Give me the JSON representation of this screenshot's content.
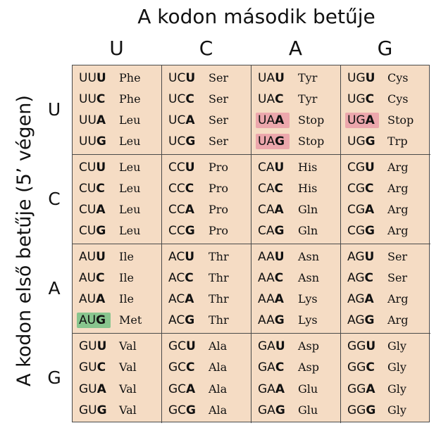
{
  "title": "A kodon második betűje",
  "side_title": "A kodon első betűje (5’ végen)",
  "column_headers": [
    "U",
    "C",
    "A",
    "G"
  ],
  "row_headers": [
    "U",
    "C",
    "A",
    "G"
  ],
  "colors": {
    "cell_background": "#f5dcc4",
    "stop_highlight": "#eca7ac",
    "start_highlight": "#88c58e"
  },
  "blocks": [
    [
      [
        [
          "UU",
          "U",
          "Phe",
          ""
        ],
        [
          "UU",
          "C",
          "Phe",
          ""
        ],
        [
          "UU",
          "A",
          "Leu",
          ""
        ],
        [
          "UU",
          "G",
          "Leu",
          ""
        ]
      ],
      [
        [
          "UC",
          "U",
          "Ser",
          ""
        ],
        [
          "UC",
          "C",
          "Ser",
          ""
        ],
        [
          "UC",
          "A",
          "Ser",
          ""
        ],
        [
          "UC",
          "G",
          "Ser",
          ""
        ]
      ],
      [
        [
          "UA",
          "U",
          "Tyr",
          ""
        ],
        [
          "UA",
          "C",
          "Tyr",
          ""
        ],
        [
          "UA",
          "A",
          "Stop",
          "stop"
        ],
        [
          "UA",
          "G",
          "Stop",
          "stop"
        ]
      ],
      [
        [
          "UG",
          "U",
          "Cys",
          ""
        ],
        [
          "UG",
          "C",
          "Cys",
          ""
        ],
        [
          "UG",
          "A",
          "Stop",
          "stop"
        ],
        [
          "UG",
          "G",
          "Trp",
          ""
        ]
      ]
    ],
    [
      [
        [
          "CU",
          "U",
          "Leu",
          ""
        ],
        [
          "CU",
          "C",
          "Leu",
          ""
        ],
        [
          "CU",
          "A",
          "Leu",
          ""
        ],
        [
          "CU",
          "G",
          "Leu",
          ""
        ]
      ],
      [
        [
          "CC",
          "U",
          "Pro",
          ""
        ],
        [
          "CC",
          "C",
          "Pro",
          ""
        ],
        [
          "CC",
          "A",
          "Pro",
          ""
        ],
        [
          "CC",
          "G",
          "Pro",
          ""
        ]
      ],
      [
        [
          "CA",
          "U",
          "His",
          ""
        ],
        [
          "CA",
          "C",
          "His",
          ""
        ],
        [
          "CA",
          "A",
          "Gln",
          ""
        ],
        [
          "CA",
          "G",
          "Gln",
          ""
        ]
      ],
      [
        [
          "CG",
          "U",
          "Arg",
          ""
        ],
        [
          "CG",
          "C",
          "Arg",
          ""
        ],
        [
          "CG",
          "A",
          "Arg",
          ""
        ],
        [
          "CG",
          "G",
          "Arg",
          ""
        ]
      ]
    ],
    [
      [
        [
          "AU",
          "U",
          "Ile",
          ""
        ],
        [
          "AU",
          "C",
          "Ile",
          ""
        ],
        [
          "AU",
          "A",
          "Ile",
          ""
        ],
        [
          "AU",
          "G",
          "Met",
          "start"
        ]
      ],
      [
        [
          "AC",
          "U",
          "Thr",
          ""
        ],
        [
          "AC",
          "C",
          "Thr",
          ""
        ],
        [
          "AC",
          "A",
          "Thr",
          ""
        ],
        [
          "AC",
          "G",
          "Thr",
          ""
        ]
      ],
      [
        [
          "AA",
          "U",
          "Asn",
          ""
        ],
        [
          "AA",
          "C",
          "Asn",
          ""
        ],
        [
          "AA",
          "A",
          "Lys",
          ""
        ],
        [
          "AA",
          "G",
          "Lys",
          ""
        ]
      ],
      [
        [
          "AG",
          "U",
          "Ser",
          ""
        ],
        [
          "AG",
          "C",
          "Ser",
          ""
        ],
        [
          "AG",
          "A",
          "Arg",
          ""
        ],
        [
          "AG",
          "G",
          "Arg",
          ""
        ]
      ]
    ],
    [
      [
        [
          "GU",
          "U",
          "Val",
          ""
        ],
        [
          "GU",
          "C",
          "Val",
          ""
        ],
        [
          "GU",
          "A",
          "Val",
          ""
        ],
        [
          "GU",
          "G",
          "Val",
          ""
        ]
      ],
      [
        [
          "GC",
          "U",
          "Ala",
          ""
        ],
        [
          "GC",
          "C",
          "Ala",
          ""
        ],
        [
          "GC",
          "A",
          "Ala",
          ""
        ],
        [
          "GC",
          "G",
          "Ala",
          ""
        ]
      ],
      [
        [
          "GA",
          "U",
          "Asp",
          ""
        ],
        [
          "GA",
          "C",
          "Asp",
          ""
        ],
        [
          "GA",
          "A",
          "Glu",
          ""
        ],
        [
          "GA",
          "G",
          "Glu",
          ""
        ]
      ],
      [
        [
          "GG",
          "U",
          "Gly",
          ""
        ],
        [
          "GG",
          "C",
          "Gly",
          ""
        ],
        [
          "GG",
          "A",
          "Gly",
          ""
        ],
        [
          "GG",
          "G",
          "Gly",
          ""
        ]
      ]
    ]
  ]
}
